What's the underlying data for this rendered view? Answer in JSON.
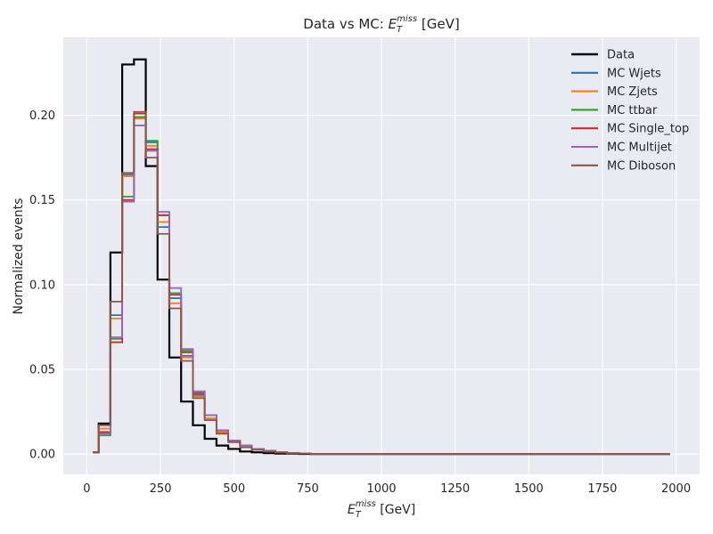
{
  "chart_data": {
    "type": "line",
    "title": "Data vs MC: E_T^miss [GeV]",
    "title_parts": {
      "pre": "Data vs MC: ",
      "base": "E",
      "sub": "T",
      "sup": "miss",
      "post": " [GeV]"
    },
    "xlabel": "E_T^miss [GeV]",
    "xlabel_parts": {
      "base": "E",
      "sub": "T",
      "sup": "miss",
      "post": " [GeV]"
    },
    "ylabel": "Normalized events",
    "xlim": [
      -80,
      2080
    ],
    "ylim": [
      -0.012,
      0.246
    ],
    "xticks": [
      0,
      250,
      500,
      750,
      1000,
      1250,
      1500,
      1750,
      2000
    ],
    "yticks": [
      0.0,
      0.05,
      0.1,
      0.15,
      0.2
    ],
    "ytick_labels": [
      "0.00",
      "0.05",
      "0.10",
      "0.15",
      "0.20"
    ],
    "grid": true,
    "legend_position": "top-right",
    "bin_edges": [
      20,
      40,
      80,
      120,
      160,
      200,
      240,
      280,
      320,
      360,
      400,
      440,
      480,
      520,
      560,
      600,
      640,
      680,
      720,
      760,
      1980
    ],
    "series": [
      {
        "name": "Data",
        "color": "#000000",
        "width": 2.2,
        "values": [
          0.001,
          0.018,
          0.119,
          0.23,
          0.233,
          0.17,
          0.103,
          0.057,
          0.031,
          0.017,
          0.009,
          0.005,
          0.003,
          0.0015,
          0.001,
          0.0005,
          0.0003,
          0.0002,
          0.0001,
          0
        ]
      },
      {
        "name": "MC Wjets",
        "color": "#1f77b4",
        "width": 1.8,
        "values": [
          0.001,
          0.013,
          0.082,
          0.165,
          0.199,
          0.184,
          0.134,
          0.092,
          0.058,
          0.035,
          0.021,
          0.013,
          0.008,
          0.005,
          0.003,
          0.002,
          0.001,
          0.0005,
          0.0003,
          0.0001
        ]
      },
      {
        "name": "MC Zjets",
        "color": "#ff7f0e",
        "width": 1.8,
        "values": [
          0.001,
          0.015,
          0.08,
          0.164,
          0.198,
          0.182,
          0.137,
          0.089,
          0.057,
          0.034,
          0.021,
          0.013,
          0.008,
          0.005,
          0.003,
          0.002,
          0.001,
          0.0005,
          0.0003,
          0.0001
        ]
      },
      {
        "name": "MC ttbar",
        "color": "#2ca02c",
        "width": 1.8,
        "values": [
          0.001,
          0.011,
          0.068,
          0.152,
          0.199,
          0.185,
          0.141,
          0.095,
          0.061,
          0.037,
          0.023,
          0.014,
          0.008,
          0.005,
          0.003,
          0.002,
          0.001,
          0.0005,
          0.0003,
          0.0001
        ]
      },
      {
        "name": "MC Single_top",
        "color": "#d62728",
        "width": 1.8,
        "values": [
          0.001,
          0.013,
          0.066,
          0.15,
          0.201,
          0.18,
          0.141,
          0.094,
          0.06,
          0.036,
          0.023,
          0.014,
          0.008,
          0.005,
          0.003,
          0.002,
          0.001,
          0.0005,
          0.0003,
          0.0001
        ]
      },
      {
        "name": "MC Multijet",
        "color": "#9467bd",
        "width": 1.8,
        "values": [
          0.001,
          0.012,
          0.069,
          0.149,
          0.194,
          0.179,
          0.143,
          0.098,
          0.062,
          0.037,
          0.023,
          0.014,
          0.008,
          0.005,
          0.003,
          0.002,
          0.001,
          0.0005,
          0.0003,
          0.0001
        ]
      },
      {
        "name": "MC Diboson",
        "color": "#8c564b",
        "width": 1.8,
        "values": [
          0.001,
          0.017,
          0.09,
          0.166,
          0.202,
          0.175,
          0.13,
          0.086,
          0.055,
          0.033,
          0.02,
          0.012,
          0.007,
          0.004,
          0.0025,
          0.0015,
          0.001,
          0.0005,
          0.0003,
          0.0001
        ]
      }
    ]
  }
}
